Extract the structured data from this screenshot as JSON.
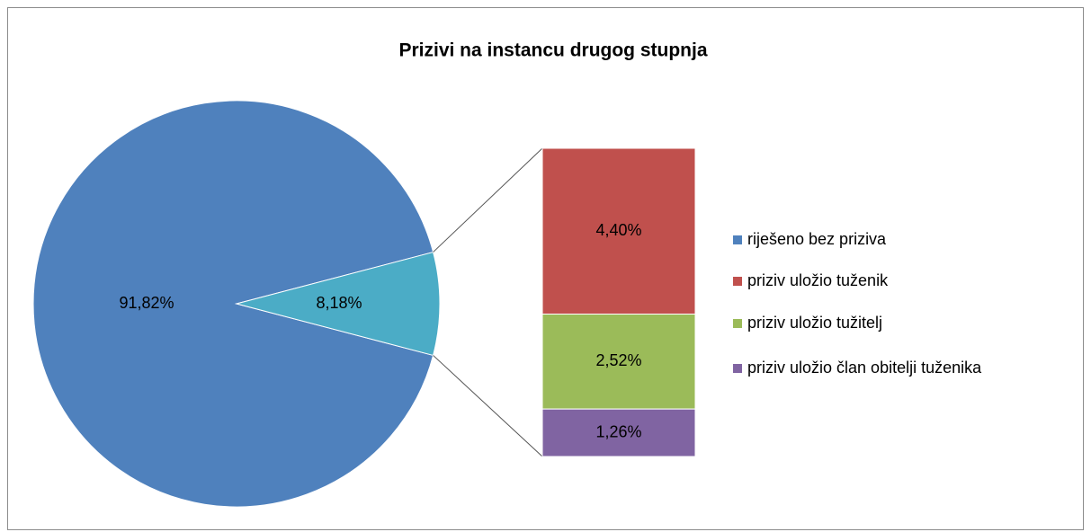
{
  "chart_data": {
    "type": "pie",
    "title": "Prizivi na instancu drugog stupnja",
    "categories": [
      "riješeno bez priziva",
      "priziv uložio tuženik",
      "priziv uložio tužitelj",
      "priziv uložio član obitelji tuženika"
    ],
    "values": [
      91.82,
      4.4,
      2.52,
      1.26
    ],
    "value_labels": [
      "91,82%",
      "4,40%",
      "2,52%",
      "1,26%"
    ],
    "colors": [
      "#4f81bd",
      "#c0504d",
      "#9bbb59",
      "#8064a2"
    ],
    "other_value": 8.18,
    "other_value_label": "8,18%",
    "other_color": "#4bacc6",
    "legend": "right"
  }
}
